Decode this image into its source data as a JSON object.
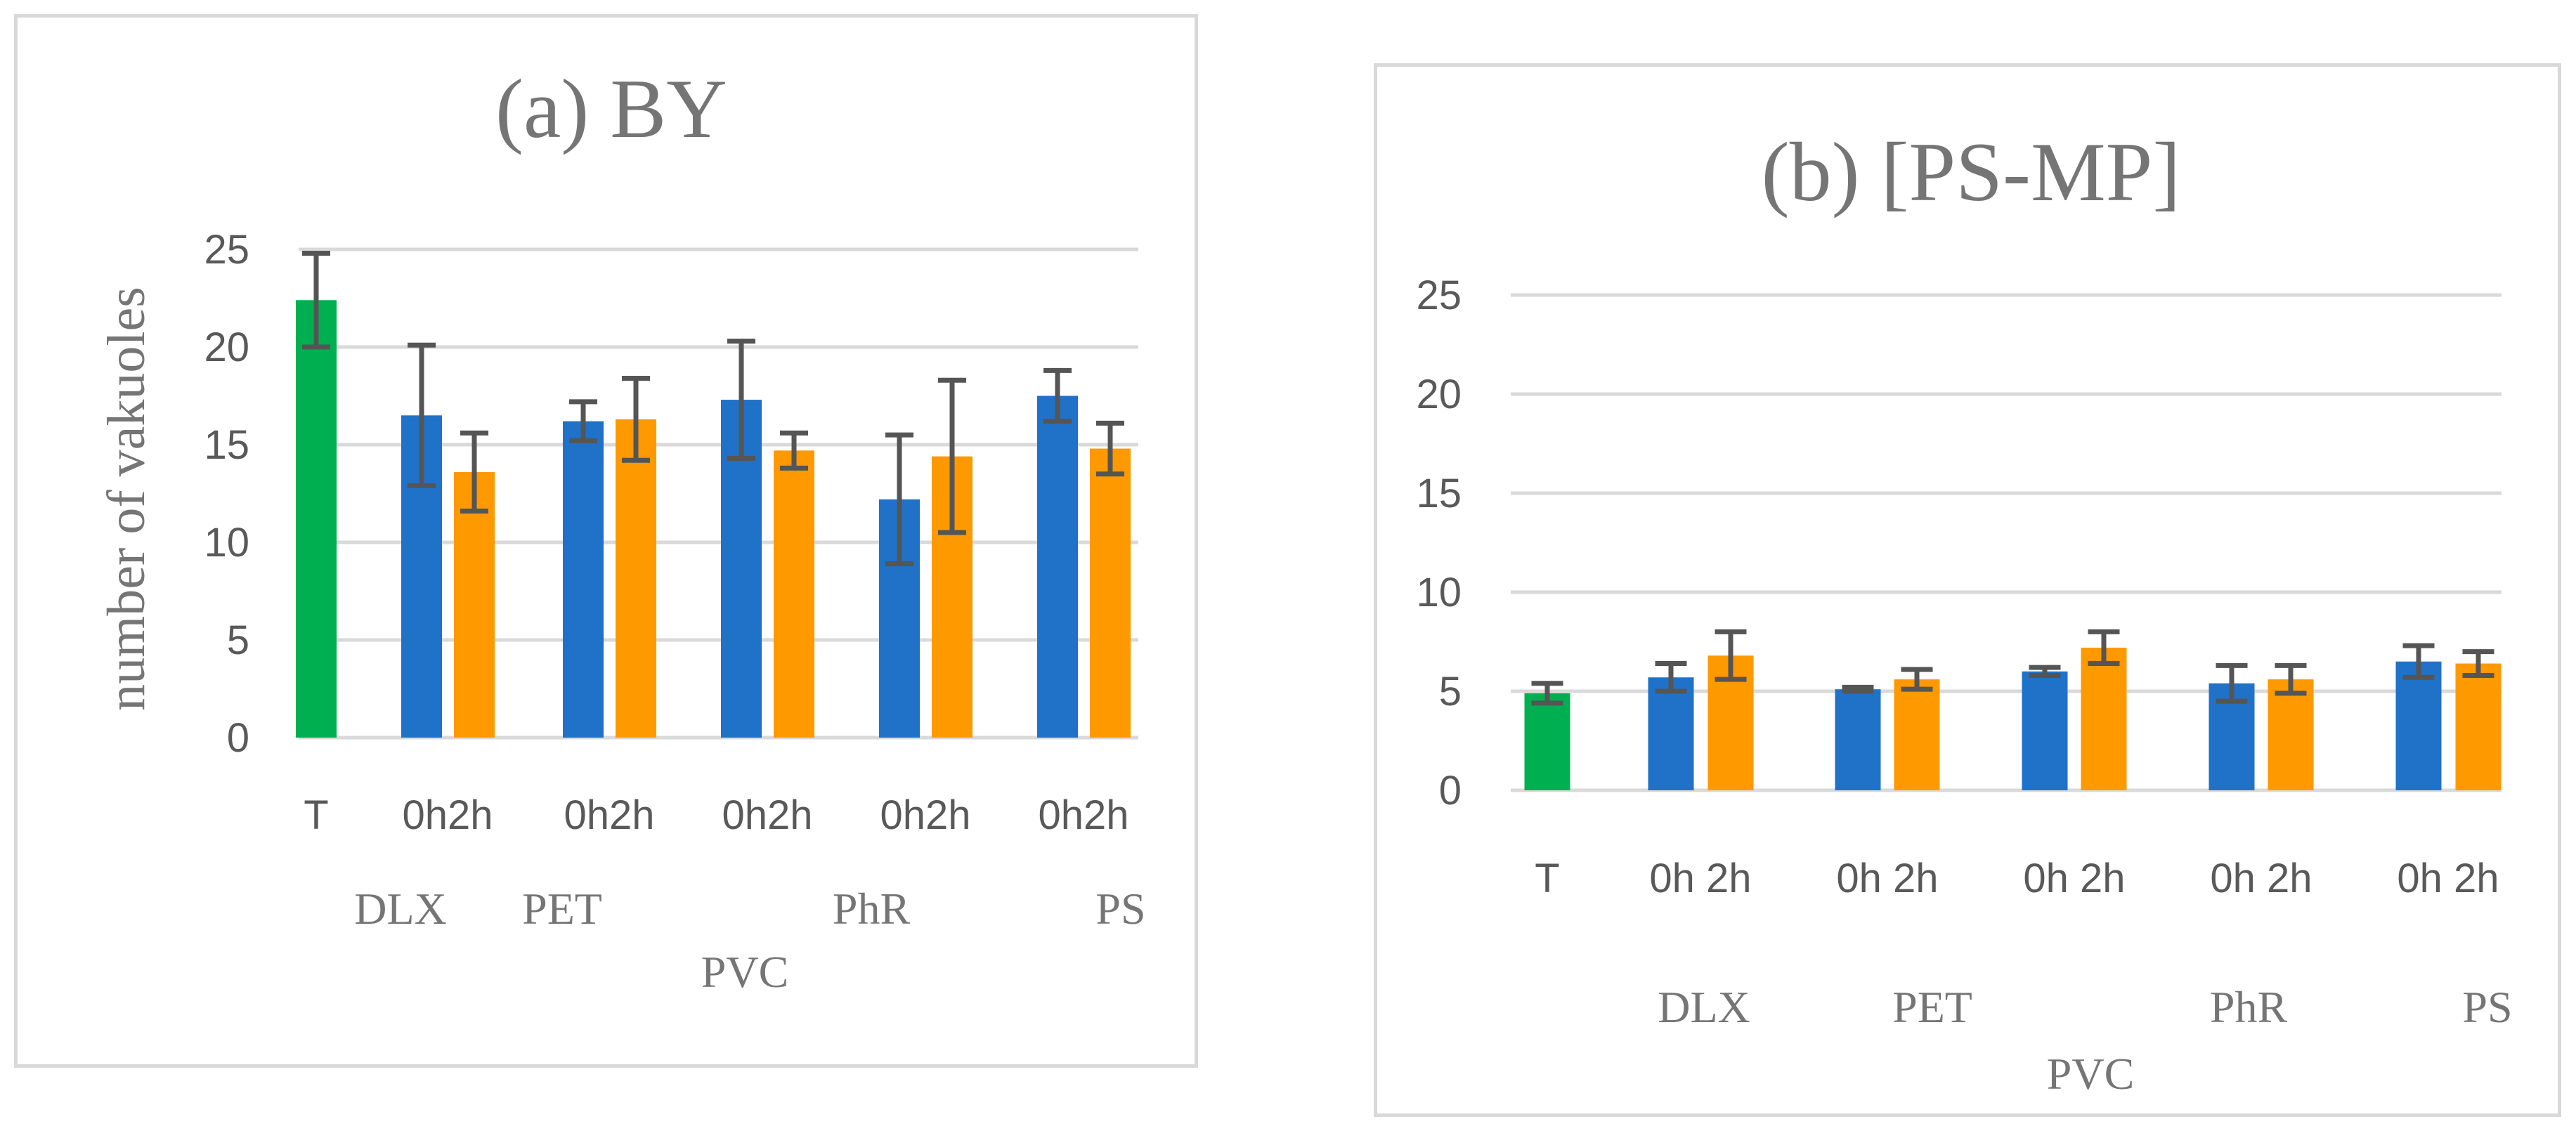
{
  "chart_data": [
    {
      "type": "bar",
      "title": "(a) BY",
      "ylabel": "number of vakuoles",
      "xlabel": "",
      "ylim": [
        0,
        25
      ],
      "yticks": [
        0,
        5,
        10,
        15,
        20,
        25
      ],
      "grid": true,
      "colors": {
        "T": "#00b050",
        "0h": "#1f72c8",
        "2h": "#ff9900"
      },
      "categories": [
        "T",
        "0h",
        "2h",
        "0h",
        "2h",
        "0h",
        "2h",
        "0h",
        "2h",
        "0h",
        "2h"
      ],
      "tick_labels": [
        "T",
        "0h2h",
        "0h2h",
        "0h2h",
        "0h2h",
        "0h2h"
      ],
      "group_labels": [
        "DLX",
        "PET",
        "PhR",
        "PS"
      ],
      "group_label_bottom": "PVC",
      "values": [
        22.4,
        16.5,
        13.6,
        16.2,
        16.3,
        17.3,
        14.7,
        12.2,
        14.4,
        17.5,
        14.8
      ],
      "errors": [
        2.4,
        3.6,
        2.0,
        1.0,
        2.1,
        3.0,
        0.9,
        3.3,
        3.9,
        1.3,
        1.3
      ]
    },
    {
      "type": "bar",
      "title": "(b) [PS-MP]",
      "ylabel": "",
      "xlabel": "",
      "ylim": [
        0,
        25
      ],
      "yticks": [
        0,
        5,
        10,
        15,
        20,
        25
      ],
      "grid": true,
      "colors": {
        "T": "#00b050",
        "0h": "#1f72c8",
        "2h": "#ff9900"
      },
      "categories": [
        "T",
        "0h",
        "2h",
        "0h",
        "2h",
        "0h",
        "2h",
        "0h",
        "2h",
        "0h",
        "2h"
      ],
      "tick_labels": [
        "T",
        "0h 2h",
        "0h 2h",
        "0h 2h",
        "0h 2h",
        "0h 2h"
      ],
      "group_labels": [
        "DLX",
        "PET",
        "PhR",
        "PS"
      ],
      "group_label_bottom": "PVC",
      "values": [
        4.9,
        5.7,
        6.8,
        5.1,
        5.6,
        6.0,
        7.2,
        5.4,
        5.6,
        6.5,
        6.4
      ],
      "errors": [
        0.5,
        0.7,
        1.2,
        0.1,
        0.5,
        0.2,
        0.8,
        0.9,
        0.7,
        0.8,
        0.6
      ]
    }
  ]
}
